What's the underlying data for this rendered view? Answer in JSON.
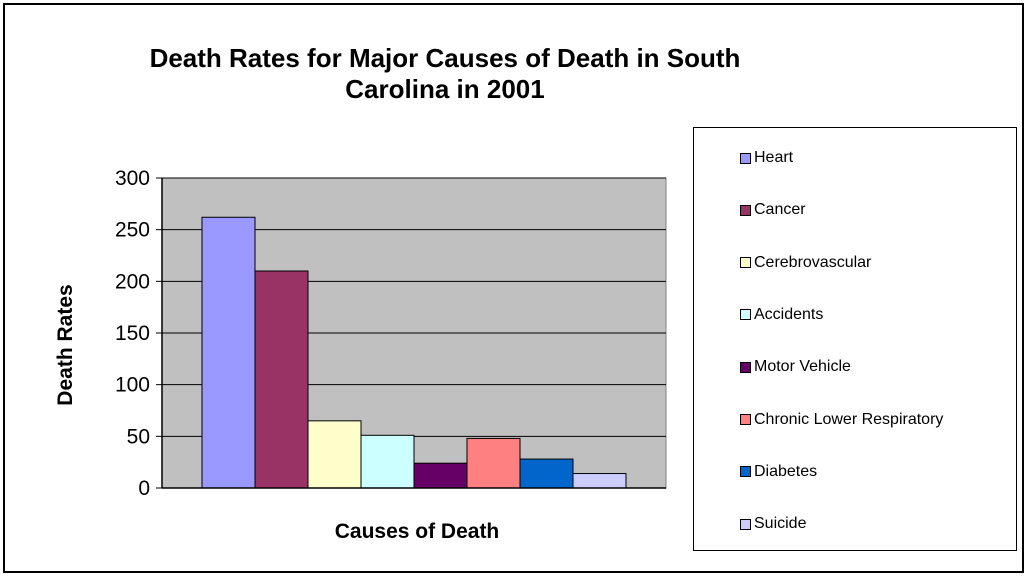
{
  "chart_data": {
    "type": "bar",
    "title": "Death Rates for Major Causes of Death in South Carolina in 2001",
    "xlabel": "Causes of Death",
    "ylabel": "Death Rates",
    "ylim": [
      0,
      300
    ],
    "yticks": [
      "0",
      "50",
      "100",
      "150",
      "200",
      "250",
      "300"
    ],
    "grid": true,
    "legend_position": "right",
    "series": [
      {
        "name": "Heart",
        "values": [
          262
        ],
        "color": "#9999ff"
      },
      {
        "name": "Cancer",
        "values": [
          210
        ],
        "color": "#993366"
      },
      {
        "name": "Cerebrovascular",
        "values": [
          65
        ],
        "color": "#ffffcc"
      },
      {
        "name": "Accidents",
        "values": [
          51
        ],
        "color": "#ccffff"
      },
      {
        "name": "Motor Vehicle",
        "values": [
          24
        ],
        "color": "#660066"
      },
      {
        "name": "Chronic Lower Respiratory",
        "values": [
          48
        ],
        "color": "#ff8080"
      },
      {
        "name": "Diabetes",
        "values": [
          28
        ],
        "color": "#0066cc"
      },
      {
        "name": "Suicide",
        "values": [
          14
        ],
        "color": "#ccccff"
      }
    ]
  }
}
